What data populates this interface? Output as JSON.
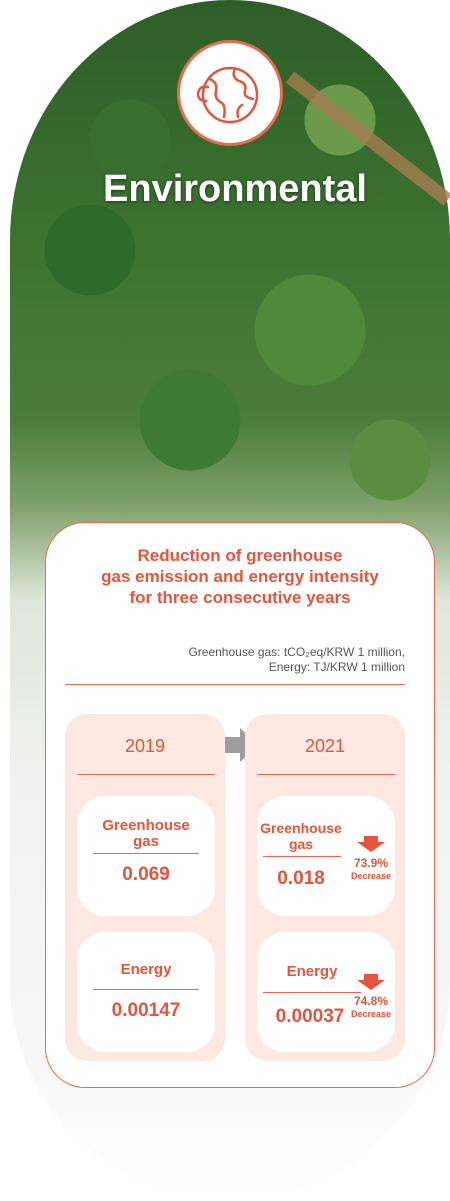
{
  "header": {
    "title": "Environmental"
  },
  "card": {
    "title_lines": [
      "Reduction of greenhouse",
      "gas emission and energy intensity",
      "for three consecutive years"
    ],
    "units": [
      "Greenhouse gas: tCO₂eq/KRW 1 million,",
      "Energy: TJ/KRW 1 million"
    ],
    "columns": [
      {
        "year": "2019",
        "items": [
          {
            "label_lines": [
              "Greenhouse",
              "gas"
            ],
            "value": "0.069"
          },
          {
            "label_lines": [
              "Energy"
            ],
            "value": "0.00147"
          }
        ]
      },
      {
        "year": "2021",
        "items": [
          {
            "label_lines": [
              "Greenhouse",
              "gas"
            ],
            "value": "0.018",
            "change": "73.9%",
            "change_label": "Decrease"
          },
          {
            "label_lines": [
              "Energy"
            ],
            "value": "0.00037",
            "change": "74.8%",
            "change_label": "Decrease"
          }
        ]
      }
    ]
  }
}
